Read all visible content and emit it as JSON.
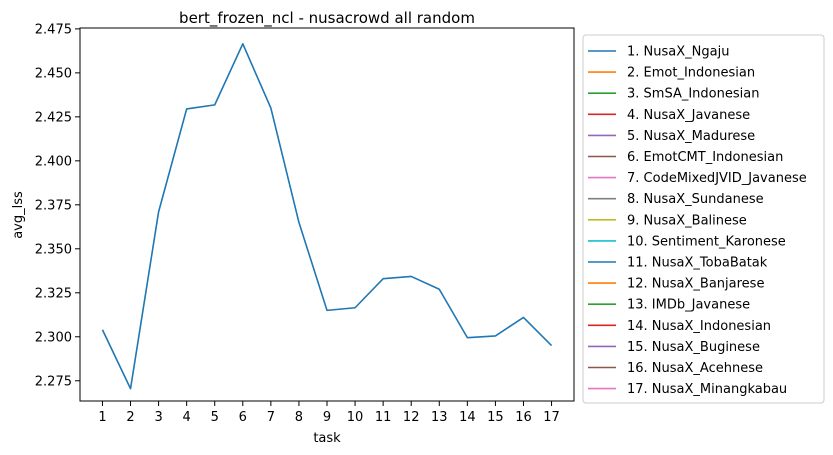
{
  "chart_data": {
    "type": "line",
    "title": "bert_frozen_ncl - nusacrowd all random",
    "xlabel": "task",
    "ylabel": "avg_lss",
    "x": [
      1,
      2,
      3,
      4,
      5,
      6,
      7,
      8,
      9,
      10,
      11,
      12,
      13,
      14,
      15,
      16,
      17
    ],
    "y_ticks": [
      "2.275",
      "2.300",
      "2.325",
      "2.350",
      "2.375",
      "2.400",
      "2.425",
      "2.450",
      "2.475"
    ],
    "ylim": [
      2.2635,
      2.4755
    ],
    "xlim": [
      0.2,
      17.8
    ],
    "grid": false,
    "legend_position": "outside-right",
    "series": [
      {
        "name": "1. NusaX_Ngaju",
        "color": "#1f77b4",
        "values": [
          2.304,
          2.2705,
          2.371,
          2.4295,
          2.4318,
          2.4665,
          2.43,
          2.365,
          2.315,
          2.3165,
          2.333,
          2.3343,
          2.327,
          2.2995,
          2.3005,
          2.311,
          2.295
        ]
      }
    ],
    "legend": [
      {
        "label": "1. NusaX_Ngaju",
        "color": "#1f77b4"
      },
      {
        "label": "2. Emot_Indonesian",
        "color": "#ff7f0e"
      },
      {
        "label": "3. SmSA_Indonesian",
        "color": "#2ca02c"
      },
      {
        "label": "4. NusaX_Javanese",
        "color": "#d62728"
      },
      {
        "label": "5. NusaX_Madurese",
        "color": "#9467bd"
      },
      {
        "label": "6. EmotCMT_Indonesian",
        "color": "#8c564b"
      },
      {
        "label": "7. CodeMixedJVID_Javanese",
        "color": "#e377c2"
      },
      {
        "label": "8. NusaX_Sundanese",
        "color": "#7f7f7f"
      },
      {
        "label": "9. NusaX_Balinese",
        "color": "#bcbd22"
      },
      {
        "label": "10. Sentiment_Karonese",
        "color": "#17becf"
      },
      {
        "label": "11. NusaX_TobaBatak",
        "color": "#1f77b4"
      },
      {
        "label": "12. NusaX_Banjarese",
        "color": "#ff7f0e"
      },
      {
        "label": "13. IMDb_Javanese",
        "color": "#2ca02c"
      },
      {
        "label": "14. NusaX_Indonesian",
        "color": "#d62728"
      },
      {
        "label": "15. NusaX_Buginese",
        "color": "#9467bd"
      },
      {
        "label": "16. NusaX_Acehnese",
        "color": "#8c564b"
      },
      {
        "label": "17. NusaX_Minangkabau",
        "color": "#e377c2"
      }
    ]
  }
}
